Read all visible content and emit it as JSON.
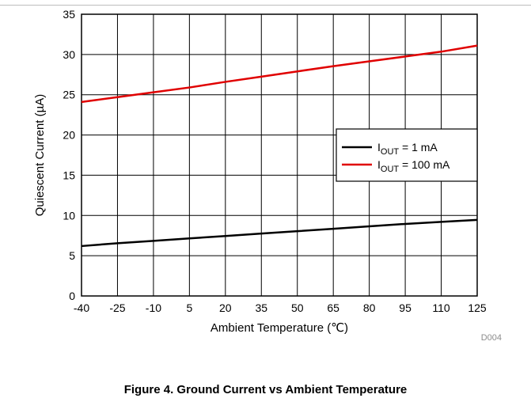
{
  "chart_data": {
    "type": "line",
    "title": "",
    "xlabel": "Ambient Temperature (℃)",
    "ylabel": "Quiescent Current (µA)",
    "xlim": [
      -40,
      125
    ],
    "ylim": [
      0,
      35
    ],
    "x_ticks": [
      -40,
      -25,
      -10,
      5,
      20,
      35,
      50,
      65,
      80,
      95,
      110,
      125
    ],
    "y_ticks": [
      0,
      5,
      10,
      15,
      20,
      25,
      30,
      35
    ],
    "grid": true,
    "legend_position": "right",
    "series": [
      {
        "name": "I_OUT = 1 mA",
        "legend": {
          "main": "I",
          "sub": "OUT",
          "rest": " = 1 mA"
        },
        "color": "#000000",
        "x": [
          -40,
          -25,
          -10,
          5,
          20,
          35,
          50,
          65,
          80,
          95,
          110,
          125
        ],
        "y": [
          6.2,
          6.55,
          6.85,
          7.15,
          7.45,
          7.75,
          8.05,
          8.35,
          8.65,
          8.95,
          9.2,
          9.45
        ]
      },
      {
        "name": "I_OUT = 100 mA",
        "legend": {
          "main": "I",
          "sub": "OUT",
          "rest": " = 100 mA"
        },
        "color": "#e00000",
        "x": [
          -40,
          -25,
          -10,
          5,
          20,
          35,
          50,
          65,
          80,
          95,
          110,
          125
        ],
        "y": [
          24.1,
          24.7,
          25.3,
          25.9,
          26.6,
          27.25,
          27.9,
          28.55,
          29.15,
          29.75,
          30.35,
          31.1
        ]
      }
    ],
    "source_code": "D004"
  },
  "caption": "Figure 4. Ground Current vs Ambient Temperature"
}
